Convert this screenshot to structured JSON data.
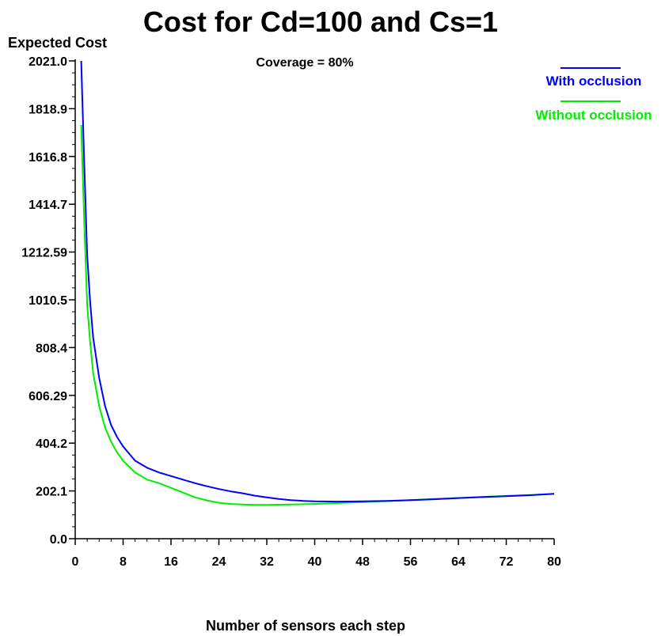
{
  "chart_data": {
    "type": "line",
    "title": "Cost for Cd=100 and Cs=1",
    "ylabel": "Expected Cost",
    "xlabel": "Number of sensors each step",
    "annotation": "Coverage = 80%",
    "xlim": [
      0,
      80
    ],
    "ylim": [
      0,
      2021
    ],
    "x_ticks": [
      "0",
      "8",
      "16",
      "24",
      "32",
      "40",
      "48",
      "56",
      "64",
      "72",
      "80"
    ],
    "x_tick_values": [
      0,
      8,
      16,
      24,
      32,
      40,
      48,
      56,
      64,
      72,
      80
    ],
    "y_ticks": [
      "0.0",
      "202.1",
      "404.2",
      "606.29",
      "808.4",
      "1010.5",
      "1212.59",
      "1414.7",
      "1616.8",
      "1818.9",
      "2021.0"
    ],
    "y_tick_values": [
      0,
      202.1,
      404.2,
      606.29,
      808.4,
      1010.5,
      1212.59,
      1414.7,
      1616.8,
      1818.9,
      2021.0
    ],
    "grid": false,
    "legend_position": "top-right",
    "series": [
      {
        "name": "With occlusion",
        "color": "#0000ff",
        "x": [
          1,
          1.5,
          2,
          2.5,
          3,
          4,
          5,
          6,
          7,
          8,
          10,
          12,
          14,
          16,
          18,
          20,
          22,
          24,
          26,
          28,
          30,
          32,
          34,
          36,
          38,
          40,
          44,
          48,
          52,
          56,
          60,
          64,
          68,
          72,
          76,
          80
        ],
        "y": [
          2021,
          1600,
          1200,
          1000,
          850,
          680,
          560,
          480,
          430,
          390,
          330,
          300,
          280,
          265,
          250,
          235,
          222,
          210,
          200,
          192,
          182,
          175,
          168,
          163,
          160,
          158,
          157,
          158,
          160,
          163,
          167,
          172,
          176,
          180,
          184,
          190
        ]
      },
      {
        "name": "Without occlusion",
        "color": "#00ee00",
        "x": [
          1,
          1.5,
          2,
          2.5,
          3,
          4,
          5,
          6,
          7,
          8,
          10,
          12,
          14,
          16,
          18,
          20,
          22,
          24,
          26,
          28,
          30,
          32,
          34,
          36,
          38,
          40,
          44,
          48,
          52,
          56,
          60,
          64,
          68,
          72,
          76,
          80
        ],
        "y": [
          1750,
          1350,
          990,
          830,
          700,
          560,
          470,
          410,
          365,
          330,
          280,
          250,
          235,
          215,
          195,
          175,
          162,
          152,
          147,
          145,
          143,
          143,
          144,
          145,
          146,
          147,
          151,
          155,
          159,
          163,
          168,
          172,
          177,
          181,
          185,
          190
        ]
      }
    ]
  }
}
